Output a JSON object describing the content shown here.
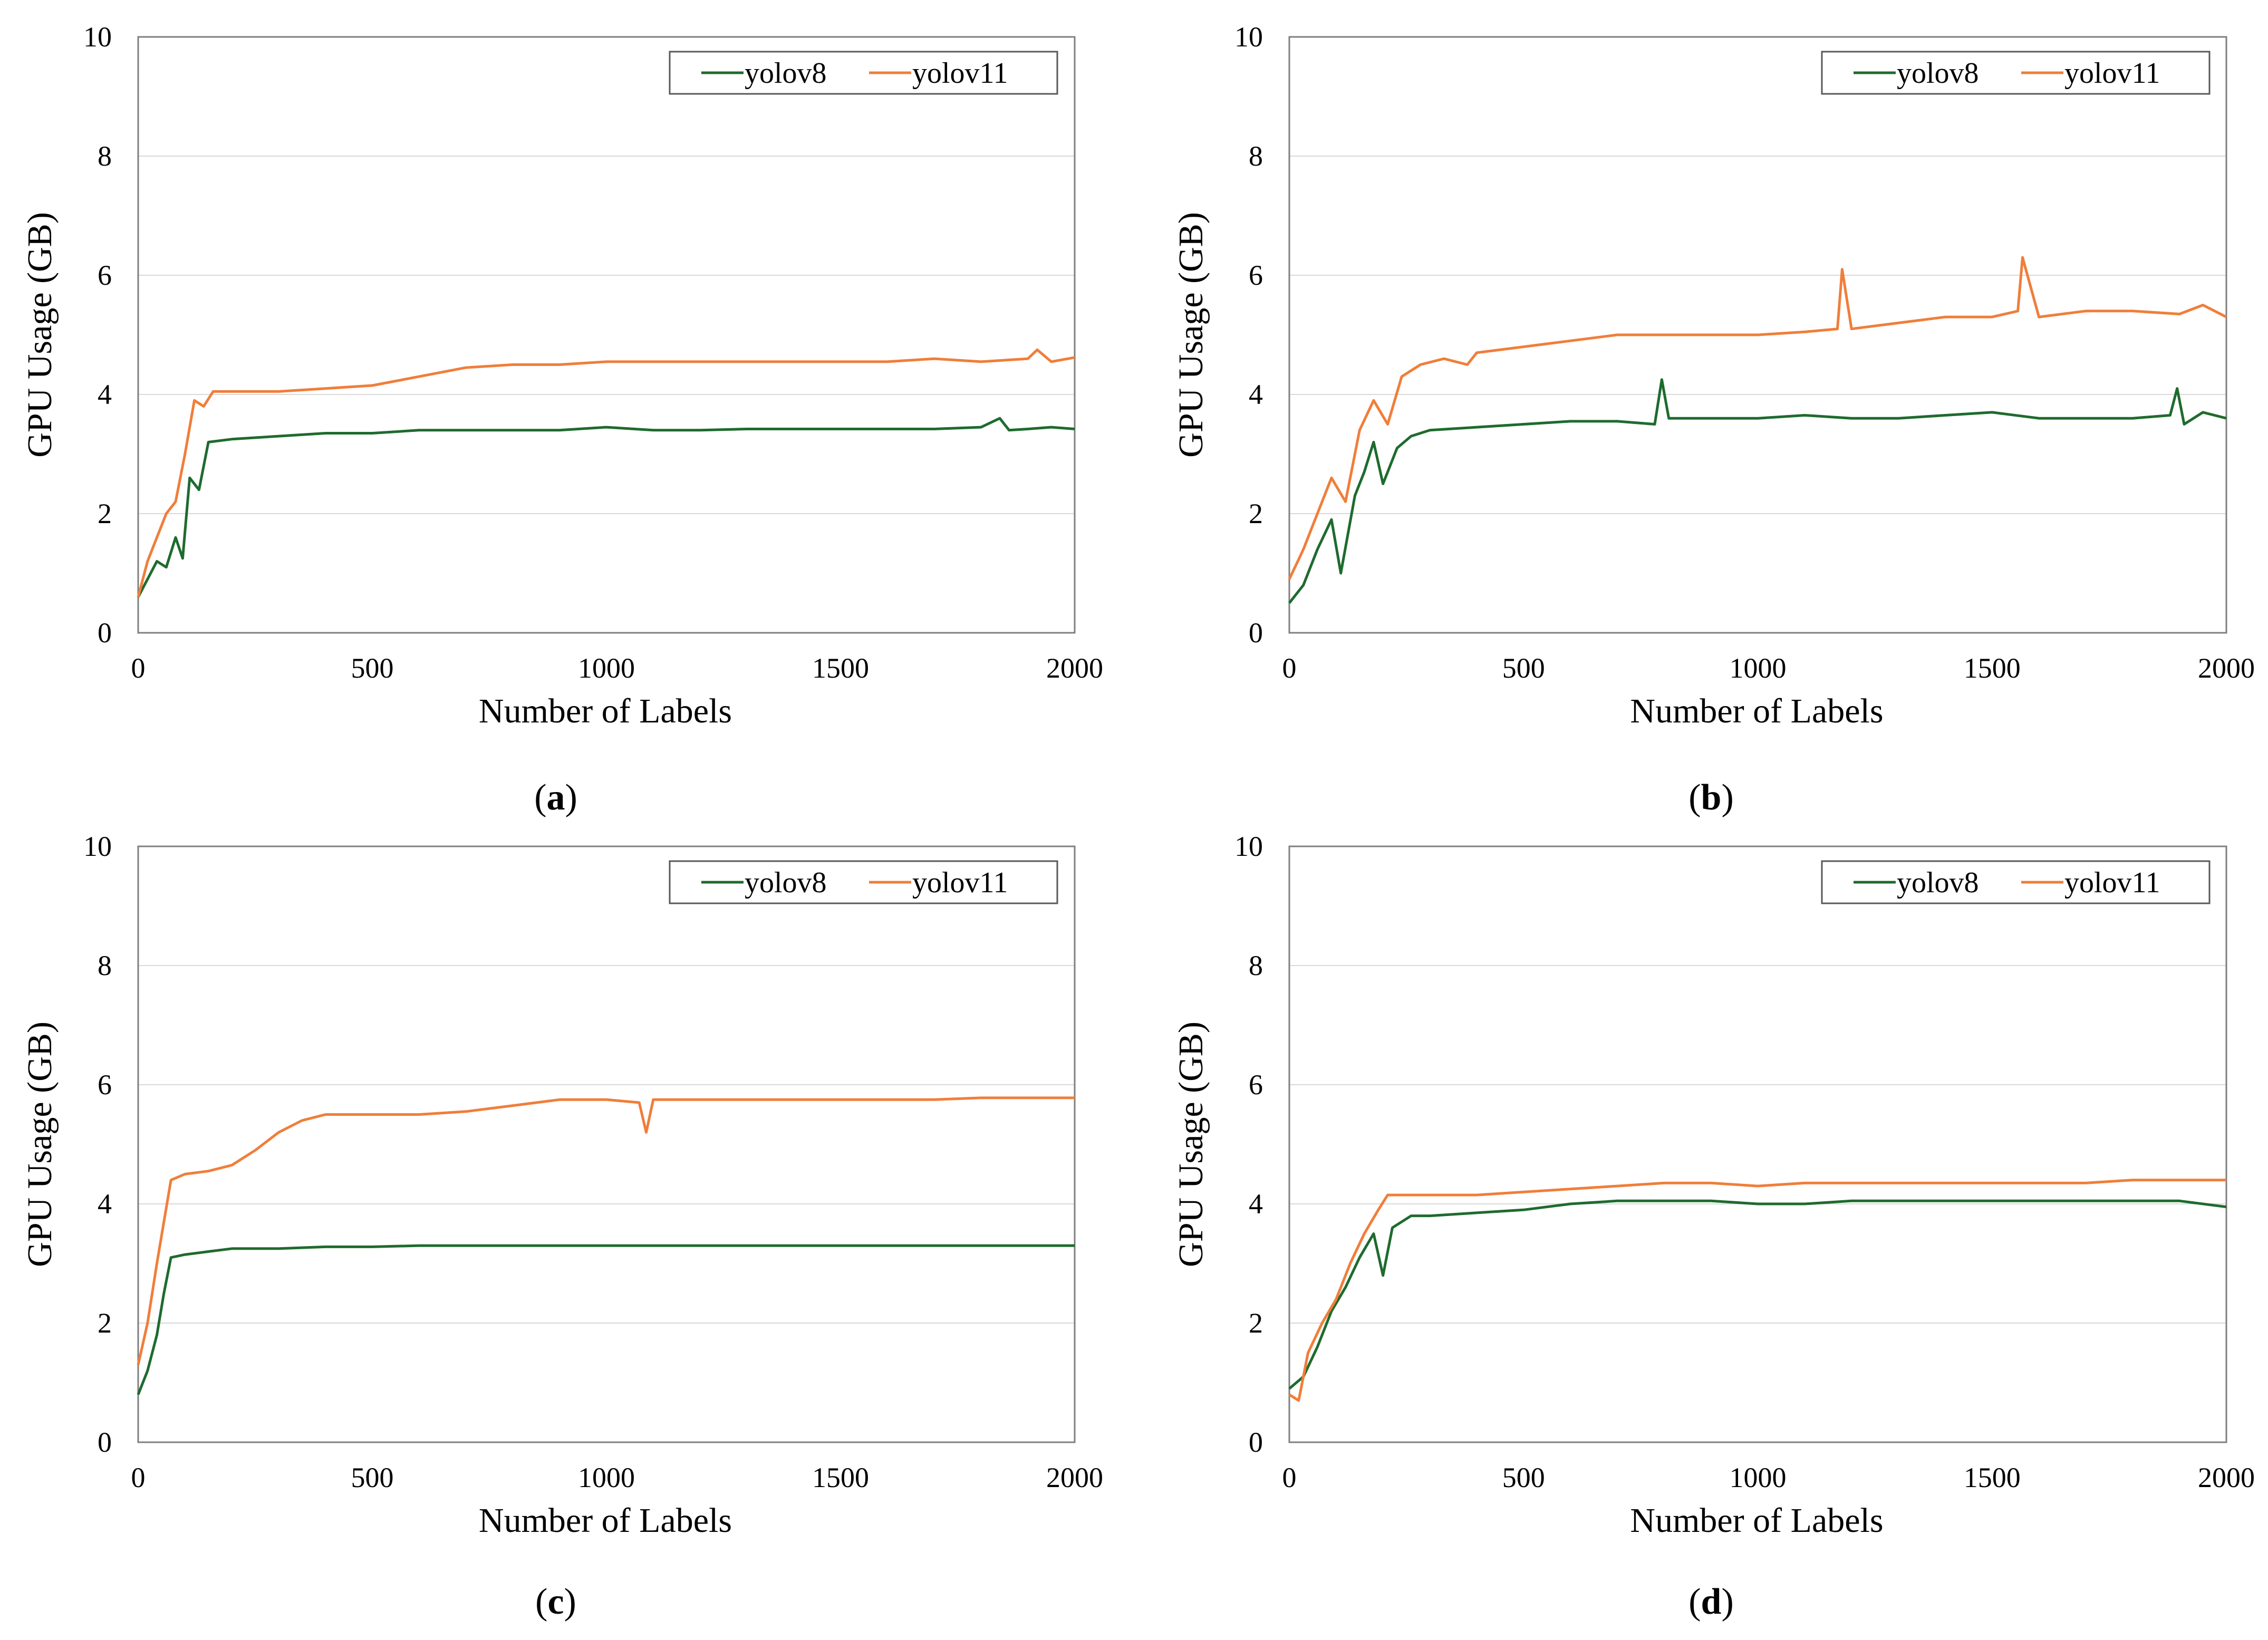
{
  "figure": {
    "panels": [
      {
        "caption_prefix": "(",
        "caption_letter": "a",
        "caption_suffix": ")"
      },
      {
        "caption_prefix": "(",
        "caption_letter": "b",
        "caption_suffix": ")"
      },
      {
        "caption_prefix": "(",
        "caption_letter": "c",
        "caption_suffix": ")"
      },
      {
        "caption_prefix": "(",
        "caption_letter": "d",
        "caption_suffix": ")"
      }
    ]
  },
  "chart_data": [
    {
      "type": "line",
      "title": "",
      "xlabel": "Number of Labels",
      "ylabel": "GPU Usage (GB)",
      "xlim": [
        0,
        2000
      ],
      "ylim": [
        0,
        10
      ],
      "xticks": [
        0,
        500,
        1000,
        1500,
        2000
      ],
      "yticks": [
        0,
        2,
        4,
        6,
        8,
        10
      ],
      "grid": "horizontal",
      "legend": "top-right",
      "series": [
        {
          "name": "yolov8",
          "color": "#1e6b2e",
          "points": [
            [
              0,
              0.6
            ],
            [
              20,
              0.9
            ],
            [
              40,
              1.2
            ],
            [
              60,
              1.1
            ],
            [
              80,
              1.6
            ],
            [
              95,
              1.25
            ],
            [
              110,
              2.6
            ],
            [
              130,
              2.4
            ],
            [
              150,
              3.2
            ],
            [
              200,
              3.25
            ],
            [
              300,
              3.3
            ],
            [
              400,
              3.35
            ],
            [
              500,
              3.35
            ],
            [
              600,
              3.4
            ],
            [
              700,
              3.4
            ],
            [
              800,
              3.4
            ],
            [
              900,
              3.4
            ],
            [
              1000,
              3.45
            ],
            [
              1100,
              3.4
            ],
            [
              1200,
              3.4
            ],
            [
              1300,
              3.42
            ],
            [
              1400,
              3.42
            ],
            [
              1500,
              3.42
            ],
            [
              1600,
              3.42
            ],
            [
              1700,
              3.42
            ],
            [
              1800,
              3.45
            ],
            [
              1840,
              3.6
            ],
            [
              1860,
              3.4
            ],
            [
              1900,
              3.42
            ],
            [
              1950,
              3.45
            ],
            [
              2000,
              3.42
            ]
          ]
        },
        {
          "name": "yolov11",
          "color": "#f07e3a",
          "points": [
            [
              0,
              0.6
            ],
            [
              20,
              1.2
            ],
            [
              40,
              1.6
            ],
            [
              60,
              2.0
            ],
            [
              80,
              2.2
            ],
            [
              100,
              3.0
            ],
            [
              120,
              3.9
            ],
            [
              140,
              3.8
            ],
            [
              160,
              4.05
            ],
            [
              200,
              4.05
            ],
            [
              300,
              4.05
            ],
            [
              400,
              4.1
            ],
            [
              500,
              4.15
            ],
            [
              600,
              4.3
            ],
            [
              700,
              4.45
            ],
            [
              800,
              4.5
            ],
            [
              900,
              4.5
            ],
            [
              1000,
              4.55
            ],
            [
              1100,
              4.55
            ],
            [
              1200,
              4.55
            ],
            [
              1300,
              4.55
            ],
            [
              1400,
              4.55
            ],
            [
              1500,
              4.55
            ],
            [
              1600,
              4.55
            ],
            [
              1700,
              4.6
            ],
            [
              1800,
              4.55
            ],
            [
              1900,
              4.6
            ],
            [
              1920,
              4.75
            ],
            [
              1950,
              4.55
            ],
            [
              2000,
              4.62
            ]
          ]
        }
      ]
    },
    {
      "type": "line",
      "title": "",
      "xlabel": "Number of Labels",
      "ylabel": "GPU Usage (GB)",
      "xlim": [
        0,
        2000
      ],
      "ylim": [
        0,
        10
      ],
      "xticks": [
        0,
        500,
        1000,
        1500,
        2000
      ],
      "yticks": [
        0,
        2,
        4,
        6,
        8,
        10
      ],
      "grid": "horizontal",
      "legend": "top-right",
      "series": [
        {
          "name": "yolov8",
          "color": "#1e6b2e",
          "points": [
            [
              0,
              0.5
            ],
            [
              30,
              0.8
            ],
            [
              60,
              1.4
            ],
            [
              90,
              1.9
            ],
            [
              110,
              1.0
            ],
            [
              140,
              2.3
            ],
            [
              160,
              2.7
            ],
            [
              180,
              3.2
            ],
            [
              200,
              2.5
            ],
            [
              230,
              3.1
            ],
            [
              260,
              3.3
            ],
            [
              300,
              3.4
            ],
            [
              400,
              3.45
            ],
            [
              500,
              3.5
            ],
            [
              600,
              3.55
            ],
            [
              700,
              3.55
            ],
            [
              780,
              3.5
            ],
            [
              795,
              4.25
            ],
            [
              810,
              3.6
            ],
            [
              900,
              3.6
            ],
            [
              1000,
              3.6
            ],
            [
              1100,
              3.65
            ],
            [
              1200,
              3.6
            ],
            [
              1300,
              3.6
            ],
            [
              1400,
              3.65
            ],
            [
              1500,
              3.7
            ],
            [
              1600,
              3.6
            ],
            [
              1700,
              3.6
            ],
            [
              1800,
              3.6
            ],
            [
              1880,
              3.65
            ],
            [
              1895,
              4.1
            ],
            [
              1910,
              3.5
            ],
            [
              1950,
              3.7
            ],
            [
              2000,
              3.6
            ]
          ]
        },
        {
          "name": "yolov11",
          "color": "#f07e3a",
          "points": [
            [
              0,
              0.9
            ],
            [
              30,
              1.4
            ],
            [
              60,
              2.0
            ],
            [
              90,
              2.6
            ],
            [
              120,
              2.2
            ],
            [
              150,
              3.4
            ],
            [
              180,
              3.9
            ],
            [
              210,
              3.5
            ],
            [
              240,
              4.3
            ],
            [
              280,
              4.5
            ],
            [
              330,
              4.6
            ],
            [
              380,
              4.5
            ],
            [
              400,
              4.7
            ],
            [
              500,
              4.8
            ],
            [
              600,
              4.9
            ],
            [
              700,
              5.0
            ],
            [
              800,
              5.0
            ],
            [
              900,
              5.0
            ],
            [
              1000,
              5.0
            ],
            [
              1100,
              5.05
            ],
            [
              1170,
              5.1
            ],
            [
              1180,
              6.1
            ],
            [
              1200,
              5.1
            ],
            [
              1300,
              5.2
            ],
            [
              1400,
              5.3
            ],
            [
              1500,
              5.3
            ],
            [
              1555,
              5.4
            ],
            [
              1565,
              6.3
            ],
            [
              1600,
              5.3
            ],
            [
              1700,
              5.4
            ],
            [
              1800,
              5.4
            ],
            [
              1900,
              5.35
            ],
            [
              1950,
              5.5
            ],
            [
              2000,
              5.3
            ]
          ]
        }
      ]
    },
    {
      "type": "line",
      "title": "",
      "xlabel": "Number of Labels",
      "ylabel": "GPU Usage (GB)",
      "xlim": [
        0,
        2000
      ],
      "ylim": [
        0,
        10
      ],
      "xticks": [
        0,
        500,
        1000,
        1500,
        2000
      ],
      "yticks": [
        0,
        2,
        4,
        6,
        8,
        10
      ],
      "grid": "horizontal",
      "legend": "top-right",
      "series": [
        {
          "name": "yolov8",
          "color": "#1e6b2e",
          "points": [
            [
              0,
              0.8
            ],
            [
              20,
              1.2
            ],
            [
              40,
              1.8
            ],
            [
              55,
              2.5
            ],
            [
              70,
              3.1
            ],
            [
              100,
              3.15
            ],
            [
              150,
              3.2
            ],
            [
              200,
              3.25
            ],
            [
              300,
              3.25
            ],
            [
              400,
              3.28
            ],
            [
              500,
              3.28
            ],
            [
              600,
              3.3
            ],
            [
              700,
              3.3
            ],
            [
              800,
              3.3
            ],
            [
              900,
              3.3
            ],
            [
              1000,
              3.3
            ],
            [
              1100,
              3.3
            ],
            [
              1200,
              3.3
            ],
            [
              1300,
              3.3
            ],
            [
              1400,
              3.3
            ],
            [
              1500,
              3.3
            ],
            [
              1600,
              3.3
            ],
            [
              1700,
              3.3
            ],
            [
              1800,
              3.3
            ],
            [
              1900,
              3.3
            ],
            [
              2000,
              3.3
            ]
          ]
        },
        {
          "name": "yolov11",
          "color": "#f07e3a",
          "points": [
            [
              0,
              1.3
            ],
            [
              20,
              2.0
            ],
            [
              40,
              3.0
            ],
            [
              55,
              3.7
            ],
            [
              70,
              4.4
            ],
            [
              100,
              4.5
            ],
            [
              150,
              4.55
            ],
            [
              200,
              4.65
            ],
            [
              250,
              4.9
            ],
            [
              300,
              5.2
            ],
            [
              350,
              5.4
            ],
            [
              400,
              5.5
            ],
            [
              500,
              5.5
            ],
            [
              600,
              5.5
            ],
            [
              700,
              5.55
            ],
            [
              800,
              5.65
            ],
            [
              900,
              5.75
            ],
            [
              1000,
              5.75
            ],
            [
              1070,
              5.7
            ],
            [
              1085,
              5.2
            ],
            [
              1100,
              5.75
            ],
            [
              1200,
              5.75
            ],
            [
              1300,
              5.75
            ],
            [
              1400,
              5.75
            ],
            [
              1500,
              5.75
            ],
            [
              1600,
              5.75
            ],
            [
              1700,
              5.75
            ],
            [
              1800,
              5.78
            ],
            [
              1900,
              5.78
            ],
            [
              2000,
              5.78
            ]
          ]
        }
      ]
    },
    {
      "type": "line",
      "title": "",
      "xlabel": "Number of Labels",
      "ylabel": "GPU Usage (GB)",
      "xlim": [
        0,
        2000
      ],
      "ylim": [
        0,
        10
      ],
      "xticks": [
        0,
        500,
        1000,
        1500,
        2000
      ],
      "yticks": [
        0,
        2,
        4,
        6,
        8,
        10
      ],
      "grid": "horizontal",
      "legend": "top-right",
      "series": [
        {
          "name": "yolov8",
          "color": "#1e6b2e",
          "points": [
            [
              0,
              0.9
            ],
            [
              30,
              1.1
            ],
            [
              60,
              1.6
            ],
            [
              90,
              2.2
            ],
            [
              120,
              2.6
            ],
            [
              150,
              3.1
            ],
            [
              180,
              3.5
            ],
            [
              200,
              2.8
            ],
            [
              220,
              3.6
            ],
            [
              260,
              3.8
            ],
            [
              300,
              3.8
            ],
            [
              400,
              3.85
            ],
            [
              500,
              3.9
            ],
            [
              600,
              4.0
            ],
            [
              700,
              4.05
            ],
            [
              800,
              4.05
            ],
            [
              900,
              4.05
            ],
            [
              1000,
              4.0
            ],
            [
              1100,
              4.0
            ],
            [
              1200,
              4.05
            ],
            [
              1300,
              4.05
            ],
            [
              1400,
              4.05
            ],
            [
              1500,
              4.05
            ],
            [
              1600,
              4.05
            ],
            [
              1700,
              4.05
            ],
            [
              1800,
              4.05
            ],
            [
              1900,
              4.05
            ],
            [
              2000,
              3.95
            ]
          ]
        },
        {
          "name": "yolov11",
          "color": "#f07e3a",
          "points": [
            [
              0,
              0.8
            ],
            [
              20,
              0.7
            ],
            [
              40,
              1.5
            ],
            [
              70,
              2.0
            ],
            [
              100,
              2.4
            ],
            [
              130,
              3.0
            ],
            [
              160,
              3.5
            ],
            [
              190,
              3.9
            ],
            [
              210,
              4.15
            ],
            [
              250,
              4.15
            ],
            [
              300,
              4.15
            ],
            [
              400,
              4.15
            ],
            [
              500,
              4.2
            ],
            [
              600,
              4.25
            ],
            [
              700,
              4.3
            ],
            [
              800,
              4.35
            ],
            [
              900,
              4.35
            ],
            [
              1000,
              4.3
            ],
            [
              1100,
              4.35
            ],
            [
              1200,
              4.35
            ],
            [
              1300,
              4.35
            ],
            [
              1400,
              4.35
            ],
            [
              1500,
              4.35
            ],
            [
              1600,
              4.35
            ],
            [
              1700,
              4.35
            ],
            [
              1800,
              4.4
            ],
            [
              1900,
              4.4
            ],
            [
              2000,
              4.4
            ]
          ]
        }
      ]
    }
  ]
}
